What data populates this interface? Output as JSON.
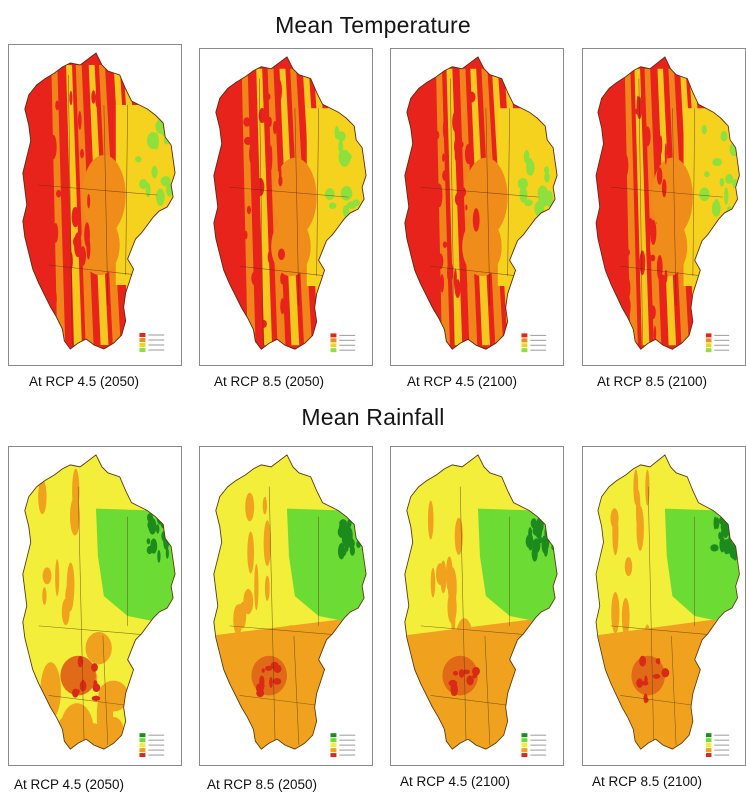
{
  "sections": [
    {
      "title": "Mean Temperature",
      "variable": "temperature",
      "panels": [
        {
          "caption": "At RCP 4.5 (2050)"
        },
        {
          "caption": "At RCP 8.5 (2050)"
        },
        {
          "caption": "At RCP 4.5 (2100)"
        },
        {
          "caption": "At RCP 8.5 (2100)"
        }
      ],
      "colors": {
        "hot": "#e8231c",
        "warm": "#f08c1a",
        "mild": "#f5d21e",
        "cool": "#8ee03c",
        "border": "#5a2a10"
      }
    },
    {
      "title": "Mean Rainfall",
      "variable": "rainfall",
      "panels": [
        {
          "caption": "At RCP 4.5 (2050)"
        },
        {
          "caption": "At RCP 8.5 (2050)"
        },
        {
          "caption": "At RCP 4.5 (2100)"
        },
        {
          "caption": "At RCP 8.5 (2100)"
        }
      ],
      "colors": {
        "dry": "#f2ee3a",
        "low": "#f0a21e",
        "mid": "#e06a18",
        "peak": "#d92a16",
        "wet": "#6cdc34",
        "wettest": "#1d8a1d",
        "border": "#5a3a10"
      }
    }
  ]
}
